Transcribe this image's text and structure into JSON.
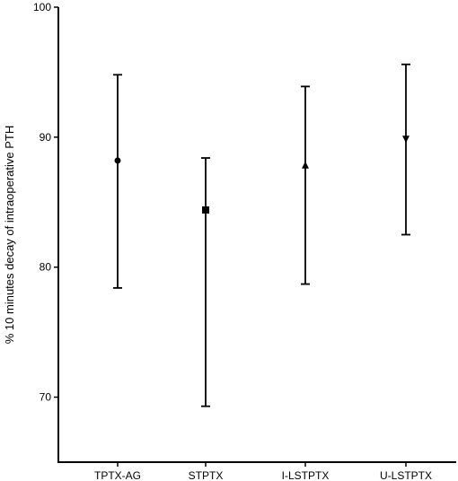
{
  "chart_data": {
    "type": "scatter",
    "title": "",
    "xlabel": "",
    "ylabel": "% 10 minutes decay of intraoperative PTH",
    "ylim": [
      65,
      100
    ],
    "yticks": [
      70,
      80,
      90,
      100
    ],
    "grid": false,
    "categories": [
      "TPTX-AG",
      "STPTX",
      "I-LSTPTX",
      "U-LSTPTX"
    ],
    "points": [
      {
        "category": "TPTX-AG",
        "mean": 88.2,
        "upper": 94.8,
        "lower": 78.4,
        "marker": "circle"
      },
      {
        "category": "STPTX",
        "mean": 84.4,
        "upper": 88.4,
        "lower": 69.3,
        "marker": "square"
      },
      {
        "category": "I-LSTPTX",
        "mean": 87.8,
        "upper": 93.9,
        "lower": 78.7,
        "marker": "triangle-up"
      },
      {
        "category": "U-LSTPTX",
        "mean": 89.9,
        "upper": 95.6,
        "lower": 82.5,
        "marker": "triangle-down"
      }
    ]
  }
}
